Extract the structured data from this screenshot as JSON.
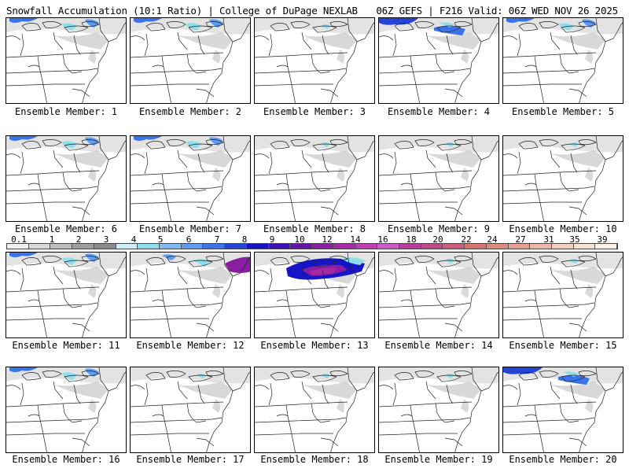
{
  "header": {
    "left": "Snowfall Accumulation (10:1 Ratio) | College of DuPage NEXLAB",
    "right": "06Z GEFS | F216 Valid: 06Z WED NOV 26 2025"
  },
  "colorbar": {
    "labels": [
      "0.1",
      "1",
      "2",
      "3",
      "4",
      "5",
      "6",
      "7",
      "8",
      "9",
      "10",
      "12",
      "14",
      "16",
      "18",
      "20",
      "22",
      "24",
      "27",
      "31",
      "35",
      "39"
    ],
    "colors": [
      "#f0f0f0",
      "#d8d8d8",
      "#bdbdbd",
      "#9e9e9e",
      "#8a8a8a",
      "#cdeff7",
      "#8fdcea",
      "#82b9f0",
      "#5d9cf2",
      "#3b73e8",
      "#2444d6",
      "#1616c8",
      "#3a10b8",
      "#6416a8",
      "#8a1ea0",
      "#a828a8",
      "#c03cb4",
      "#c85cc4",
      "#b83c98",
      "#c04a88",
      "#c85e7a",
      "#d47270",
      "#dc8a7c",
      "#e4a092",
      "#ecb8a8",
      "#f2d0c0",
      "#f6e2d4",
      "#faf0e8"
    ]
  },
  "panels": [
    {
      "caption": "Ensemble Member: 1",
      "snow": "light-blue"
    },
    {
      "caption": "Ensemble Member: 2",
      "snow": "light-blue"
    },
    {
      "caption": "Ensemble Member: 3",
      "snow": "light"
    },
    {
      "caption": "Ensemble Member: 4",
      "snow": "blue"
    },
    {
      "caption": "Ensemble Member: 5",
      "snow": "light-blue"
    },
    {
      "caption": "Ensemble Member: 6",
      "snow": "light-blue"
    },
    {
      "caption": "Ensemble Member: 7",
      "snow": "light-blue"
    },
    {
      "caption": "Ensemble Member: 8",
      "snow": "light"
    },
    {
      "caption": "Ensemble Member: 9",
      "snow": "light"
    },
    {
      "caption": "Ensemble Member: 10",
      "snow": "light"
    },
    {
      "caption": "Ensemble Member: 11",
      "snow": "light-blue"
    },
    {
      "caption": "Ensemble Member: 12",
      "snow": "purple"
    },
    {
      "caption": "Ensemble Member: 13",
      "snow": "heavy"
    },
    {
      "caption": "Ensemble Member: 14",
      "snow": "light"
    },
    {
      "caption": "Ensemble Member: 15",
      "snow": "light"
    },
    {
      "caption": "Ensemble Member: 16",
      "snow": "light-blue"
    },
    {
      "caption": "Ensemble Member: 17",
      "snow": "light"
    },
    {
      "caption": "Ensemble Member: 18",
      "snow": "light"
    },
    {
      "caption": "Ensemble Member: 19",
      "snow": "light"
    },
    {
      "caption": "Ensemble Member: 20",
      "snow": "blue"
    }
  ]
}
